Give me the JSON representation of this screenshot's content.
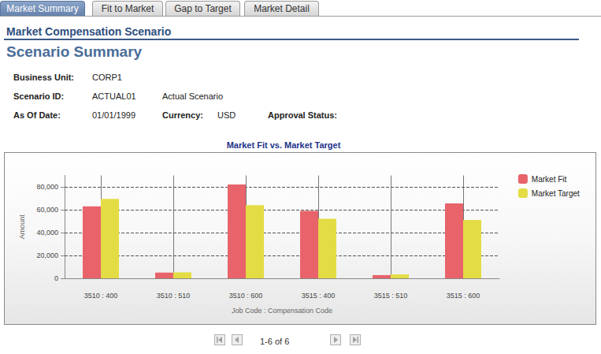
{
  "tabs": [
    "Market Summary",
    "Fit to Market",
    "Gap to Target",
    "Market Detail"
  ],
  "active_tab": "Market Summary",
  "section_title": "Market Compensation Scenario",
  "page_title": "Scenario Summary",
  "fields": [
    [
      {
        "label": "Business Unit:",
        "value": "CORP1"
      }
    ],
    [
      {
        "label": "Scenario ID:",
        "value": "ACTUAL01",
        "description": "Actual Scenario"
      }
    ],
    [
      {
        "label": "As Of Date:",
        "value": "01/01/1999"
      },
      {
        "label": "Currency:",
        "value": "USD"
      },
      {
        "label": "Approval Status:"
      }
    ]
  ],
  "chart_data": {
    "type": "bar",
    "title": "Market Fit vs. Market Target",
    "categories": [
      "3510 : 400",
      "3510 : 510",
      "3510 : 600",
      "3515 : 400",
      "3515 : 510",
      "3515 : 600"
    ],
    "series": [
      {
        "name": "Market Fit",
        "color": "#e8636a",
        "values": [
          63000,
          5000,
          82000,
          59000,
          2800,
          65500
        ]
      },
      {
        "name": "Market Target",
        "color": "#e3dc45",
        "values": [
          69500,
          5200,
          64000,
          52000,
          3400,
          51000
        ]
      }
    ],
    "xlabel": "Job Code : Compensation Code",
    "ylabel": "Amount",
    "ylim": [
      0,
      90000
    ],
    "yticks": [
      0,
      {
        "value": 20000,
        "label": "20,000"
      },
      {
        "value": 40000,
        "label": "40,000"
      },
      {
        "value": 60000,
        "label": "60,000"
      },
      {
        "value": 80000,
        "label": "80,000"
      }
    ],
    "grid": true,
    "legend": "upper right"
  },
  "pagination": "1-6 of 6"
}
